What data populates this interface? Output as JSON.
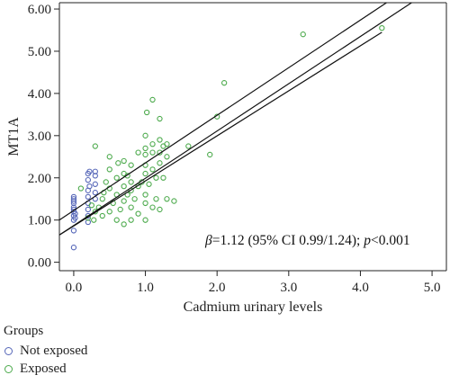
{
  "chart_data": {
    "type": "scatter",
    "xlabel": "Cadmium urinary levels",
    "ylabel": "MT1A",
    "xlim": [
      -0.2,
      5.2
    ],
    "ylim": [
      -0.2,
      6.15
    ],
    "x_ticks": [
      "0.0",
      "1.0",
      "2.0",
      "3.0",
      "4.0",
      "5.0"
    ],
    "y_ticks": [
      "0.00",
      "1.00",
      "2.00",
      "3.00",
      "4.00",
      "5.00",
      "6.00"
    ],
    "grid": false,
    "legend": {
      "title": "Groups",
      "position": "bottom-left"
    },
    "annotation": {
      "beta_symbol": "β",
      "beta_text": "=1.12 (95% CI 0.99/1.24); ",
      "p_symbol": "p",
      "p_text": "<0.001"
    },
    "regression": {
      "fit": {
        "intercept": 0.87,
        "slope": 1.12
      },
      "ci_upper_end": 5.45,
      "ci_lower_start": 1.0
    },
    "series": [
      {
        "name": "Not exposed",
        "color": "#5566b8",
        "points": [
          [
            0,
            0.35
          ],
          [
            0,
            0.75
          ],
          [
            0,
            1.0
          ],
          [
            0,
            1.1
          ],
          [
            0,
            1.2
          ],
          [
            0,
            1.25
          ],
          [
            0,
            1.3
          ],
          [
            0,
            1.4
          ],
          [
            0,
            1.45
          ],
          [
            0,
            1.5
          ],
          [
            0,
            1.55
          ],
          [
            0.02,
            1.05
          ],
          [
            0.02,
            1.15
          ],
          [
            0.2,
            0.95
          ],
          [
            0.2,
            1.1
          ],
          [
            0.2,
            1.25
          ],
          [
            0.2,
            1.4
          ],
          [
            0.2,
            1.55
          ],
          [
            0.2,
            1.7
          ],
          [
            0.2,
            1.95
          ],
          [
            0.2,
            2.1
          ],
          [
            0.22,
            1.8
          ],
          [
            0.22,
            2.15
          ],
          [
            0.3,
            1.5
          ],
          [
            0.3,
            1.65
          ],
          [
            0.3,
            1.85
          ],
          [
            0.3,
            2.05
          ],
          [
            0.3,
            2.15
          ]
        ]
      },
      {
        "name": "Exposed",
        "color": "#4caa4c",
        "points": [
          [
            0.1,
            1.75
          ],
          [
            0.2,
            1.05
          ],
          [
            0.25,
            1.35
          ],
          [
            0.28,
            1.0
          ],
          [
            0.3,
            1.2
          ],
          [
            0.3,
            2.75
          ],
          [
            0.35,
            1.3
          ],
          [
            0.4,
            1.5
          ],
          [
            0.4,
            1.1
          ],
          [
            0.42,
            1.65
          ],
          [
            0.45,
            1.9
          ],
          [
            0.5,
            1.2
          ],
          [
            0.5,
            1.75
          ],
          [
            0.5,
            2.2
          ],
          [
            0.5,
            2.5
          ],
          [
            0.55,
            1.4
          ],
          [
            0.6,
            1.0
          ],
          [
            0.6,
            1.6
          ],
          [
            0.6,
            2.0
          ],
          [
            0.62,
            2.35
          ],
          [
            0.65,
            1.25
          ],
          [
            0.7,
            0.9
          ],
          [
            0.7,
            1.45
          ],
          [
            0.7,
            1.8
          ],
          [
            0.7,
            2.1
          ],
          [
            0.7,
            2.4
          ],
          [
            0.75,
            1.6
          ],
          [
            0.75,
            2.05
          ],
          [
            0.8,
            1.0
          ],
          [
            0.8,
            1.3
          ],
          [
            0.8,
            1.7
          ],
          [
            0.8,
            1.9
          ],
          [
            0.8,
            2.3
          ],
          [
            0.85,
            1.5
          ],
          [
            0.9,
            1.15
          ],
          [
            0.9,
            1.8
          ],
          [
            0.9,
            2.6
          ],
          [
            0.95,
            1.9
          ],
          [
            1.0,
            1.0
          ],
          [
            1.0,
            1.4
          ],
          [
            1.0,
            1.6
          ],
          [
            1.0,
            2.1
          ],
          [
            1.0,
            2.3
          ],
          [
            1.0,
            2.55
          ],
          [
            1.0,
            2.7
          ],
          [
            1.0,
            3.0
          ],
          [
            1.02,
            3.55
          ],
          [
            1.05,
            1.85
          ],
          [
            1.1,
            1.3
          ],
          [
            1.1,
            2.2
          ],
          [
            1.1,
            2.6
          ],
          [
            1.1,
            2.8
          ],
          [
            1.1,
            3.85
          ],
          [
            1.15,
            1.5
          ],
          [
            1.15,
            2.0
          ],
          [
            1.2,
            1.25
          ],
          [
            1.2,
            2.35
          ],
          [
            1.2,
            2.6
          ],
          [
            1.2,
            2.9
          ],
          [
            1.2,
            3.4
          ],
          [
            1.25,
            2.0
          ],
          [
            1.25,
            2.75
          ],
          [
            1.3,
            1.5
          ],
          [
            1.3,
            2.5
          ],
          [
            1.3,
            2.8
          ],
          [
            1.4,
            1.45
          ],
          [
            1.6,
            2.75
          ],
          [
            1.9,
            2.55
          ],
          [
            2.0,
            3.45
          ],
          [
            2.1,
            4.25
          ],
          [
            3.2,
            5.4
          ],
          [
            4.3,
            5.55
          ]
        ]
      }
    ]
  }
}
